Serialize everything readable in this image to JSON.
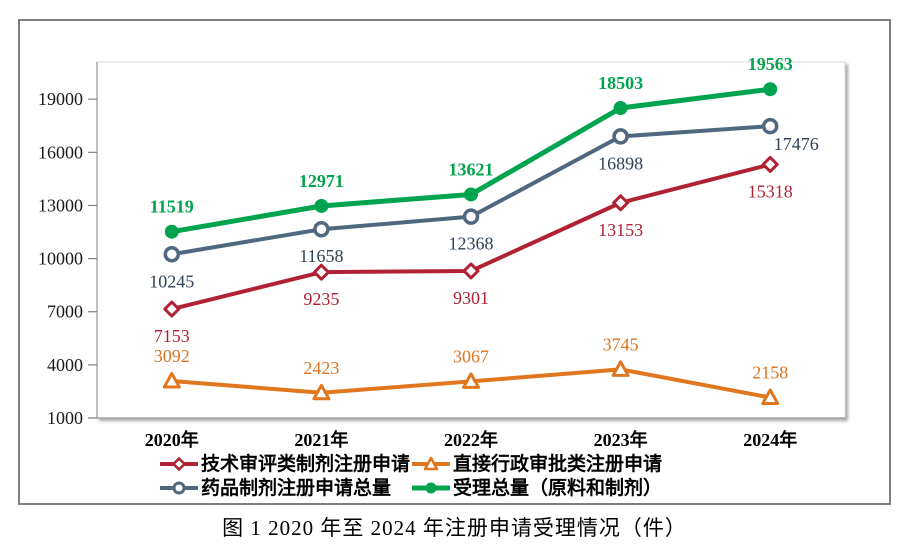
{
  "figure": {
    "caption": "图 1  2020 年至 2024 年注册申请受理情况（件）"
  },
  "chart_data": {
    "type": "line",
    "title": "",
    "xlabel": "",
    "ylabel": "",
    "categories": [
      "2020年",
      "2021年",
      "2022年",
      "2023年",
      "2024年"
    ],
    "series": [
      {
        "name": "技术审评类制剂注册申请",
        "color": "#B02233",
        "label_color": "#B02233",
        "marker": "diamond-open",
        "line_width": 4,
        "values": [
          7153,
          9235,
          9301,
          13153,
          15318
        ],
        "label_side": "below",
        "label_bold": false
      },
      {
        "name": "直接行政审批类注册申请",
        "color": "#E0771E",
        "label_color": "#DD7420",
        "marker": "triangle-open",
        "line_width": 4,
        "values": [
          3092,
          2423,
          3067,
          3745,
          2158
        ],
        "label_side": "above",
        "label_bold": false
      },
      {
        "name": "药品制剂注册申请总量",
        "color": "#50687F",
        "label_color": "#2F4156",
        "marker": "circle-open",
        "line_width": 4,
        "values": [
          10245,
          11658,
          12368,
          16898,
          17476
        ],
        "label_side": "below",
        "label_bold": false
      },
      {
        "name": "受理总量（原料和制剂）",
        "color": "#00A44E",
        "label_color": "#00A44E",
        "marker": "circle-filled",
        "line_width": 5,
        "values": [
          11519,
          12971,
          13621,
          18503,
          19563
        ],
        "label_side": "above",
        "label_bold": true
      }
    ],
    "yticks": [
      1000,
      4000,
      7000,
      10000,
      13000,
      16000,
      19000
    ],
    "ylim": [
      1000,
      21100
    ],
    "grid": false,
    "legend_position": "bottom",
    "axis_color": "#A6A6A6",
    "tick_color": "#7F7F7F",
    "tick_label_color": "#1A1A1A",
    "plot_border_color": "#D9D9D9"
  }
}
